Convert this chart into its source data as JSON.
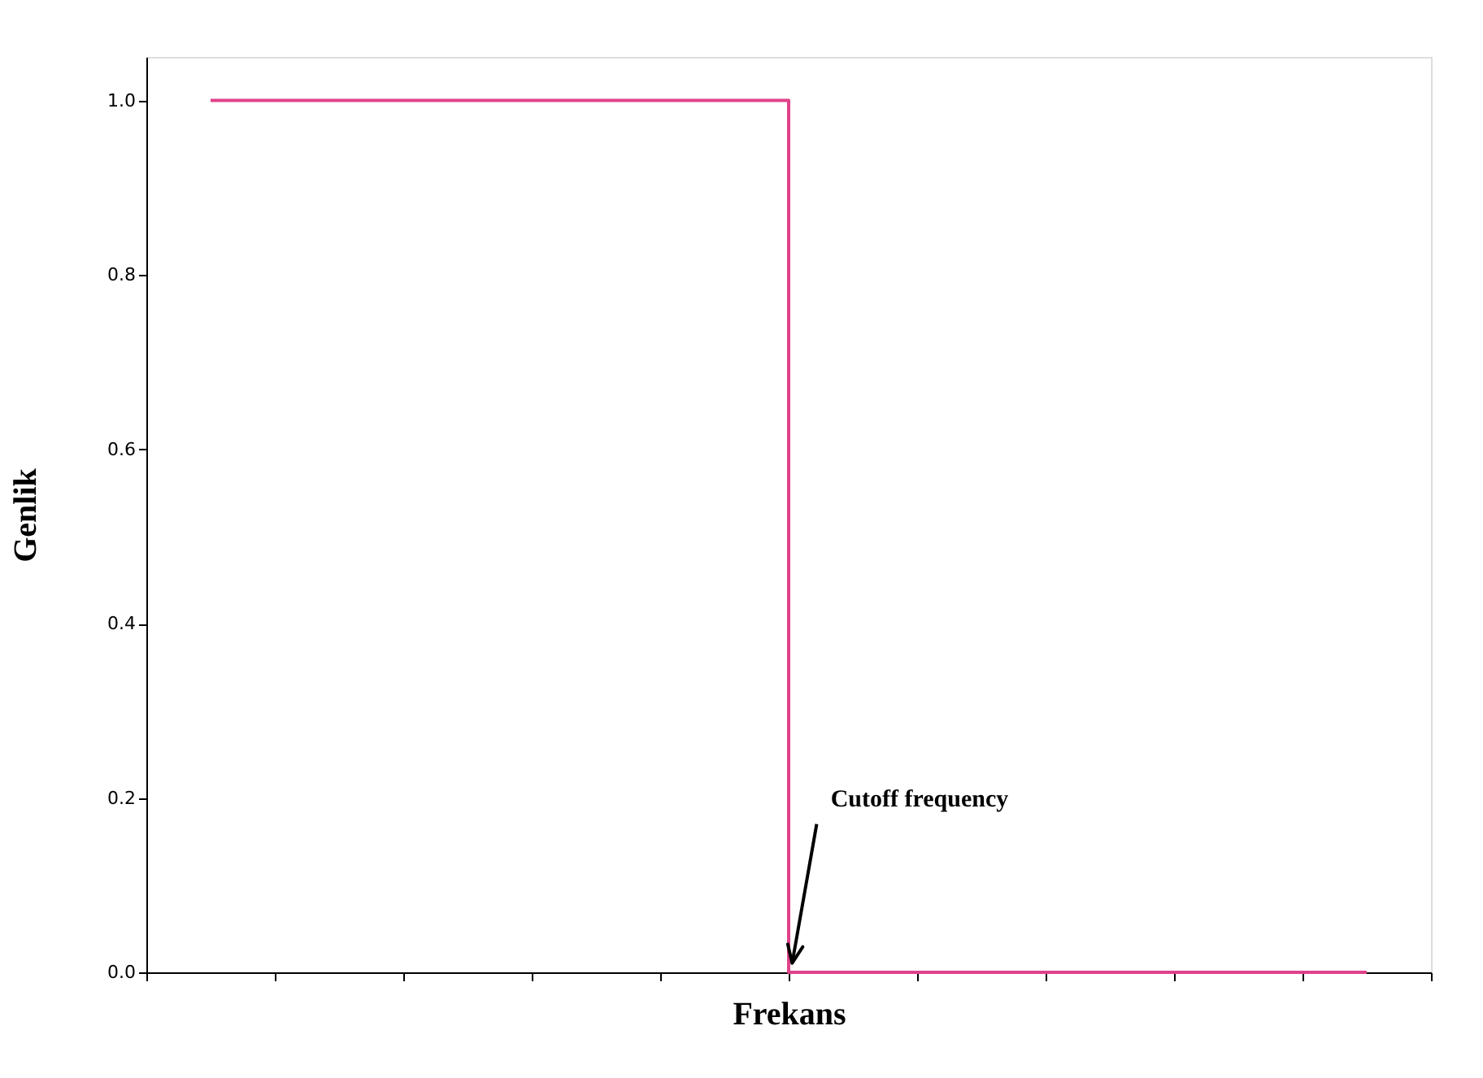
{
  "chart_data": {
    "type": "step",
    "xlabel": "Frekans",
    "ylabel": "Genlik",
    "categories": [
      null,
      null,
      null,
      null,
      null,
      null,
      null,
      null,
      null,
      null
    ],
    "series": [
      {
        "color": "#e0428a",
        "values": [
          1,
          1,
          1,
          1,
          1,
          0,
          0,
          0,
          0,
          0
        ]
      }
    ],
    "ylim": [
      0,
      1.05
    ],
    "yticks": [
      {
        "value": 0,
        "label": "0.0"
      },
      0.2,
      0.4,
      0.6,
      0.8,
      {
        "value": 1,
        "label": "1.0"
      }
    ],
    "annotations": [
      "Cutoff frequency"
    ],
    "grid": false,
    "tick_labels": "y"
  }
}
